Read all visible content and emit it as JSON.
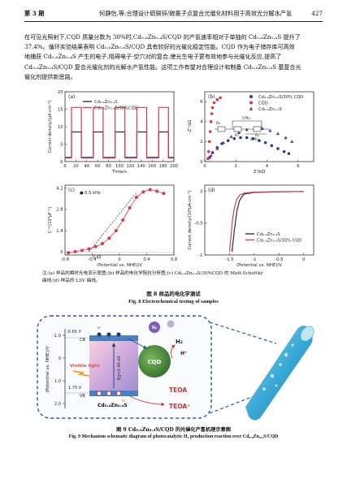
{
  "header": {
    "issue": "第 3 期",
    "running_title": "何静怡,等:合理设计硫镉锌/碳量子点复合光催化材料用于高效光分解水产氢",
    "page_number": "427"
  },
  "body_text": [
    "在可见光照射下,CQD 质量分数为 30%时,Cd₀.₆Zn₀.₄S/CQD 的产氢速率相对于单独的 Cd₀.₆Zn₀.₄S 提升了",
    "37.4%。循环实验结果表明 Cd₀.₆Zn₀.₄S/CQD 具有较好的光催化稳定性能。CQD 作为电子储存库可高效",
    "地捕获 Cd₀.₆Zn₀.₄S 产生的电子,阻碍电子-空穴对的复合,使光生电子更有效地参与光催化反应,提高了",
    "Cd₀.₆Zn₀.₄S/CQD 复合光催化剂的光解水产氢性能。这项工作有望对合理设计和制备 Cd₀.₆Zn₀.₄S 基复合光",
    "催化剂提供新思路。"
  ],
  "fig8": {
    "panels": [
      {
        "label": "(a)",
        "chart_data": {
          "type": "line",
          "xlabel": "Time/s",
          "ylabel": "Current density/(μA·cm⁻²)",
          "xlim": [
            0,
            200
          ],
          "ylim": [
            0,
            20
          ],
          "xticks": [
            0,
            20,
            40,
            60,
            80,
            100,
            120,
            140,
            160,
            180,
            200
          ],
          "yticks": [
            0,
            5,
            10,
            15,
            20
          ],
          "legend": "top-left",
          "series": [
            {
              "name": "Cd₀.₆Zn₀.₄S",
              "color": "#2a2a4a",
              "on_value": 8.5,
              "off_value": 1.2,
              "on_periods": [
                [
                  12,
                  30
                ],
                [
                  52,
                  70
                ],
                [
                  92,
                  110
                ],
                [
                  132,
                  150
                ],
                [
                  172,
                  190
                ]
              ]
            },
            {
              "name": "Cd₀.₆Zn₀.₄S/30%CQD",
              "color": "#d63b4a",
              "on_value": 15.5,
              "off_value": 1.0,
              "on_periods": [
                [
                  12,
                  30
                ],
                [
                  52,
                  70
                ],
                [
                  92,
                  110
                ],
                [
                  132,
                  150
                ],
                [
                  172,
                  190
                ]
              ]
            }
          ]
        }
      },
      {
        "label": "(b)",
        "chart_data": {
          "type": "scatter",
          "xlabel": "Z'/kΩ",
          "ylabel": "-Z''/kΩ",
          "xlim": [
            0,
            7
          ],
          "ylim": [
            0,
            7
          ],
          "xticks": [
            0,
            2,
            4,
            6
          ],
          "yticks": [
            0,
            2,
            4,
            6
          ],
          "legend": "top-right",
          "circuit_labels": {
            "r0": "R₀",
            "r1": "R₁",
            "r2": "R₂",
            "cpe1": "CPE₁",
            "cpe2": "CPE₂"
          },
          "series": [
            {
              "name": "Cd₀.₆Zn₀.₄S/30% CQD",
              "color": "#2c3a9a",
              "marker": "circle",
              "x": [
                0.3,
                0.5,
                0.8,
                1.1,
                1.5,
                1.9,
                2.3,
                2.7,
                3.1,
                3.5,
                3.9,
                4.3,
                4.7,
                5.1,
                5.4
              ],
              "y": [
                0.4,
                0.9,
                1.4,
                1.8,
                2.1,
                2.3,
                2.4,
                2.4,
                2.3,
                2.1,
                1.9,
                1.6,
                1.3,
                1.0,
                0.8
              ]
            },
            {
              "name": "CQD",
              "color": "#d63b4a",
              "marker": "circle",
              "x": [
                0.2,
                0.25,
                0.3,
                0.35,
                0.4,
                0.45,
                0.5,
                0.6,
                0.8,
                1.0
              ],
              "y": [
                0.3,
                1.0,
                2.0,
                3.0,
                4.0,
                4.8,
                5.4,
                5.9,
                6.2,
                6.4
              ]
            },
            {
              "name": "Cd₀.₆Zn₀.₄S",
              "color": "#6a3aa0",
              "marker": "triangle",
              "x": [
                0.4,
                0.8,
                1.2,
                1.7,
                2.2,
                2.7,
                3.2,
                3.7,
                4.2,
                4.7,
                5.2,
                5.6
              ],
              "y": [
                0.6,
                1.3,
                1.9,
                2.5,
                2.9,
                3.2,
                3.3,
                3.3,
                3.1,
                2.8,
                2.4,
                2.0
              ]
            }
          ]
        }
      },
      {
        "label": "(c)",
        "chart_data": {
          "type": "scatter",
          "xlabel": "(Potential vs. NHE)/V",
          "ylabel": "C⁻²/(10⁹μF⁻²)",
          "xlim": [
            -0.8,
            0.8
          ],
          "ylim": [
            -0.2,
            4.4
          ],
          "xticks": [
            -0.8,
            -0.4,
            0.0,
            0.4,
            0.8
          ],
          "yticks": [
            0.0,
            1.4,
            2.8,
            4.2
          ],
          "annotations": [
            "0.5 kHz",
            "0.45"
          ],
          "series": [
            {
              "name": "",
              "color": "#d63b4a",
              "marker": "circle",
              "x": [
                -0.75,
                -0.65,
                -0.55,
                -0.45,
                -0.35,
                -0.25,
                -0.15,
                -0.05,
                0.05,
                0.15,
                0.25,
                0.35,
                0.45,
                0.55,
                0.65
              ],
              "y": [
                -0.05,
                0.02,
                0.1,
                0.2,
                0.35,
                0.55,
                0.9,
                1.4,
                2.1,
                2.9,
                3.6,
                3.95,
                4.1,
                4.0,
                3.85
              ]
            }
          ]
        }
      },
      {
        "label": "(d)",
        "chart_data": {
          "type": "line",
          "xlabel": "(Potential vs. NHE)/V",
          "ylabel": "Current density/(10⁴μA·cm⁻²)",
          "xlim": [
            -2.0,
            0.2
          ],
          "ylim": [
            -1.0,
            0.1
          ],
          "xticks": [
            -1.5,
            -1.0,
            -0.5,
            0.0
          ],
          "yticks": [
            -1.0,
            -0.5,
            0.0
          ],
          "legend": "bottom-right",
          "series": [
            {
              "name": "Cd₀.₆Zn₀.₄S",
              "color": "#2a2a4a",
              "x": [
                -1.45,
                -1.4,
                -1.35,
                -1.3,
                -1.25,
                -1.2,
                -1.0,
                -0.5,
                0.0
              ],
              "y": [
                -0.95,
                -0.6,
                -0.3,
                -0.15,
                -0.08,
                -0.04,
                -0.015,
                -0.005,
                0.0
              ]
            },
            {
              "name": "Cd₀.₆Zn₀.₄S/30% CQD",
              "color": "#d63b4a",
              "x": [
                -1.5,
                -1.47,
                -1.44,
                -1.4,
                -1.35,
                -1.3,
                -1.2,
                -1.0,
                -0.5,
                0.0
              ],
              "y": [
                -0.95,
                -0.7,
                -0.45,
                -0.25,
                -0.12,
                -0.06,
                -0.025,
                -0.01,
                -0.004,
                0.0
              ]
            }
          ]
        }
      }
    ],
    "note_line1": "注:(a) 样品的瞬时光电流示意图;(b) 样品的电化学阻抗分析图;(c) Cd₀.₆Zn₀.₄S/30%CQD 的 Mott-Schottky",
    "note_line2": "曲线;(d) 样品的 LSV 曲线。",
    "caption_cn": "图 8   样品的电化学测试",
    "caption_en": "Fig. 8   Electrochemical testing of samples"
  },
  "fig9": {
    "axis_label": "(Potential vs. NHE)/V",
    "cb_level": "-0.65 V",
    "vb_level": "1.75 V",
    "cb": "CB",
    "vb": "VB",
    "eg": "Eg=2.40 eV",
    "visible_light": "Visible light",
    "semiconductor": "Cd₀.₆Zn₀.₄S",
    "cqd": "CQD",
    "h2": "H₂",
    "hplus": "H⁺",
    "teoa": "TEOA",
    "teoa_plus": "TEOA⁺",
    "electron": "e⁻",
    "hole": "h⁺",
    "ticks": [
      "-1.0",
      "0",
      "1.0",
      "2.0"
    ],
    "caption_cn": "图 9   Cd₀.₆Zn₀.₄S/CQD 的光催化产氢机理示意图",
    "caption_en": "Fig. 9   Mechanism schematic diagram of photocatalytic H₂ production reaction over Cd₀.₆Zn₀.₄S/CQD"
  }
}
